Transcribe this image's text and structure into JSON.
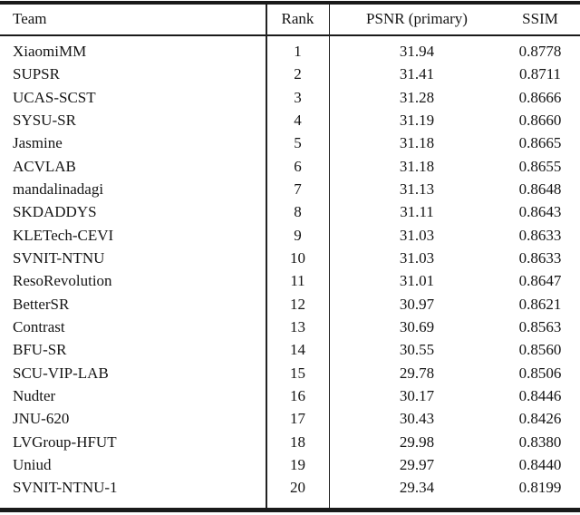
{
  "colors": {
    "background": "#ffffff",
    "text": "#141414",
    "rule": "#1a1a1a"
  },
  "table": {
    "headers": {
      "team": "Team",
      "rank": "Rank",
      "psnr": "PSNR (primary)",
      "ssim": "SSIM"
    },
    "rows": [
      {
        "team": "XiaomiMM",
        "rank": "1",
        "psnr": "31.94",
        "ssim": "0.8778"
      },
      {
        "team": "SUPSR",
        "rank": "2",
        "psnr": "31.41",
        "ssim": "0.8711"
      },
      {
        "team": "UCAS-SCST",
        "rank": "3",
        "psnr": "31.28",
        "ssim": "0.8666"
      },
      {
        "team": "SYSU-SR",
        "rank": "4",
        "psnr": "31.19",
        "ssim": "0.8660"
      },
      {
        "team": "Jasmine",
        "rank": "5",
        "psnr": "31.18",
        "ssim": "0.8665"
      },
      {
        "team": "ACVLAB",
        "rank": "6",
        "psnr": "31.18",
        "ssim": "0.8655"
      },
      {
        "team": "mandalinadagi",
        "rank": "7",
        "psnr": "31.13",
        "ssim": "0.8648"
      },
      {
        "team": "SKDADDYS",
        "rank": "8",
        "psnr": "31.11",
        "ssim": "0.8643"
      },
      {
        "team": "KLETech-CEVI",
        "rank": "9",
        "psnr": "31.03",
        "ssim": "0.8633"
      },
      {
        "team": "SVNIT-NTNU",
        "rank": "10",
        "psnr": "31.03",
        "ssim": "0.8633"
      },
      {
        "team": "ResoRevolution",
        "rank": "11",
        "psnr": "31.01",
        "ssim": "0.8647"
      },
      {
        "team": "BetterSR",
        "rank": "12",
        "psnr": "30.97",
        "ssim": "0.8621"
      },
      {
        "team": "Contrast",
        "rank": "13",
        "psnr": "30.69",
        "ssim": "0.8563"
      },
      {
        "team": "BFU-SR",
        "rank": "14",
        "psnr": "30.55",
        "ssim": "0.8560"
      },
      {
        "team": "SCU-VIP-LAB",
        "rank": "15",
        "psnr": "29.78",
        "ssim": "0.8506"
      },
      {
        "team": "Nudter",
        "rank": "16",
        "psnr": "30.17",
        "ssim": "0.8446"
      },
      {
        "team": "JNU-620",
        "rank": "17",
        "psnr": "30.43",
        "ssim": "0.8426"
      },
      {
        "team": "LVGroup-HFUT",
        "rank": "18",
        "psnr": "29.98",
        "ssim": "0.8380"
      },
      {
        "team": "Uniud",
        "rank": "19",
        "psnr": "29.97",
        "ssim": "0.8440"
      },
      {
        "team": "SVNIT-NTNU-1",
        "rank": "20",
        "psnr": "29.34",
        "ssim": "0.8199"
      }
    ]
  }
}
